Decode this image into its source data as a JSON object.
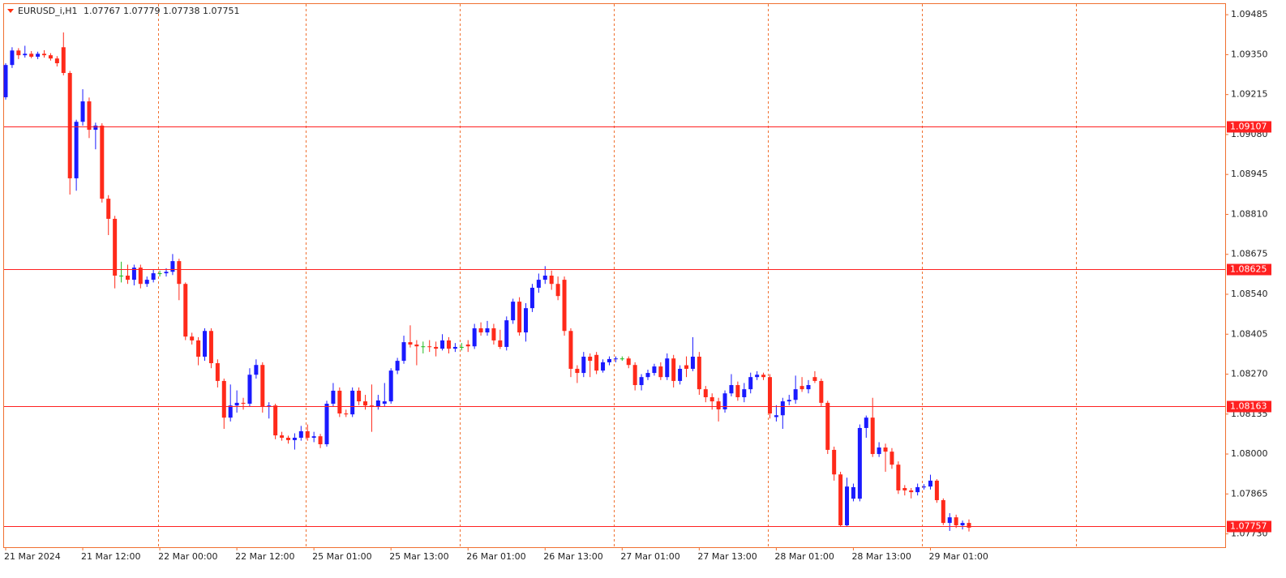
{
  "chart_data": {
    "type": "candlestick",
    "symbol": "EURUSD_i,H1",
    "up_color": "#1a1aff",
    "down_color": "#ff2a1a",
    "doji_color": "#22bb22",
    "level_color": "#ff2020",
    "categories": [
      "21 Mar 2024",
      null,
      null,
      null,
      null,
      null,
      null,
      null,
      null,
      null,
      null,
      null,
      "21 Mar 12:00",
      null,
      null,
      null,
      null,
      null,
      null,
      null,
      null,
      null,
      null,
      null,
      "22 Mar 00:00",
      null,
      null,
      null,
      null,
      null,
      null,
      null,
      null,
      null,
      null,
      null,
      "22 Mar 12:00",
      null,
      null,
      null,
      null,
      null,
      null,
      null,
      null,
      null,
      null,
      null,
      "25 Mar 01:00",
      null,
      null,
      null,
      null,
      null,
      null,
      null,
      null,
      null,
      null,
      null,
      "25 Mar 13:00",
      null,
      null,
      null,
      null,
      null,
      null,
      null,
      null,
      null,
      null,
      null,
      "26 Mar 01:00",
      null,
      null,
      null,
      null,
      null,
      null,
      null,
      null,
      null,
      null,
      null,
      "26 Mar 13:00",
      null,
      null,
      null,
      null,
      null,
      null,
      null,
      null,
      null,
      null,
      null,
      "27 Mar 01:00",
      null,
      null,
      null,
      null,
      null,
      null,
      null,
      null,
      null,
      null,
      null,
      "27 Mar 13:00",
      null,
      null,
      null,
      null,
      null,
      null,
      null,
      null,
      null,
      null,
      null,
      "28 Mar 01:00",
      null,
      null,
      null,
      null,
      null,
      null,
      null,
      null,
      null,
      null,
      null,
      "28 Mar 13:00",
      null,
      null,
      null,
      null,
      null,
      null,
      null,
      null,
      null,
      null,
      null,
      "29 Mar 01:00",
      null,
      null,
      null,
      null,
      null,
      null
    ],
    "ohlc": [
      [
        1.09206,
        1.09321,
        1.09198,
        1.09315
      ],
      [
        1.09315,
        1.09375,
        1.09305,
        1.09364
      ],
      [
        1.09364,
        1.09372,
        1.09335,
        1.09348
      ],
      [
        1.09348,
        1.0938,
        1.0934,
        1.09353
      ],
      [
        1.09353,
        1.09362,
        1.09338,
        1.09343
      ],
      [
        1.09343,
        1.0936,
        1.09335,
        1.09353
      ],
      [
        1.09353,
        1.09365,
        1.0934,
        1.09348
      ],
      [
        1.09348,
        1.09355,
        1.0933,
        1.09337
      ],
      [
        1.09337,
        1.09345,
        1.0931,
        1.09321
      ],
      [
        1.09375,
        1.09425,
        1.0928,
        1.09288
      ],
      [
        1.09288,
        1.09295,
        1.08877,
        1.08932
      ],
      [
        1.08932,
        1.0913,
        1.0889,
        1.09123
      ],
      [
        1.09123,
        1.09233,
        1.0911,
        1.09192
      ],
      [
        1.09192,
        1.09205,
        1.09068,
        1.09096
      ],
      [
        1.09096,
        1.0912,
        1.0903,
        1.0911
      ],
      [
        1.0911,
        1.09118,
        1.0885,
        1.08863
      ],
      [
        1.08863,
        1.08875,
        1.0874,
        1.08795
      ],
      [
        1.08795,
        1.08805,
        1.0856,
        1.08603
      ],
      [
        1.08603,
        1.0865,
        1.0858,
        1.08603
      ],
      [
        1.08603,
        1.0864,
        1.08575,
        1.08589
      ],
      [
        1.08589,
        1.0864,
        1.0857,
        1.0863
      ],
      [
        1.0863,
        1.0864,
        1.0856,
        1.08575
      ],
      [
        1.08575,
        1.086,
        1.08565,
        1.08589
      ],
      [
        1.08589,
        1.08625,
        1.0858,
        1.08611
      ],
      [
        1.08611,
        1.0862,
        1.086,
        1.08611
      ],
      [
        1.08611,
        1.08628,
        1.086,
        1.08616
      ],
      [
        1.08616,
        1.08676,
        1.08605,
        1.08652
      ],
      [
        1.08652,
        1.0866,
        1.0852,
        1.08575
      ],
      [
        1.08575,
        1.0858,
        1.08385,
        1.08397
      ],
      [
        1.08397,
        1.0841,
        1.0837,
        1.08384
      ],
      [
        1.08384,
        1.08395,
        1.083,
        1.08329
      ],
      [
        1.08329,
        1.08425,
        1.08315,
        1.08416
      ],
      [
        1.08416,
        1.08425,
        1.0829,
        1.08307
      ],
      [
        1.08307,
        1.0832,
        1.08225,
        1.08247
      ],
      [
        1.08247,
        1.08255,
        1.08085,
        1.08123
      ],
      [
        1.08123,
        1.08235,
        1.0811,
        1.08164
      ],
      [
        1.08164,
        1.08215,
        1.0814,
        1.08173
      ],
      [
        1.08173,
        1.0819,
        1.0815,
        1.0817
      ],
      [
        1.0817,
        1.0829,
        1.0816,
        1.08268
      ],
      [
        1.08268,
        1.0832,
        1.08255,
        1.08301
      ],
      [
        1.08301,
        1.0831,
        1.0814,
        1.08159
      ],
      [
        1.08159,
        1.08175,
        1.0812,
        1.08164
      ],
      [
        1.08164,
        1.0817,
        1.0805,
        1.08063
      ],
      [
        1.08063,
        1.08075,
        1.08045,
        1.08055
      ],
      [
        1.08055,
        1.08062,
        1.08035,
        1.08047
      ],
      [
        1.08047,
        1.0807,
        1.08015,
        1.08055
      ],
      [
        1.08055,
        1.08095,
        1.08045,
        1.08077
      ],
      [
        1.08077,
        1.081,
        1.08045,
        1.08055
      ],
      [
        1.08055,
        1.08075,
        1.0804,
        1.0806
      ],
      [
        1.0806,
        1.08068,
        1.0802,
        1.08033
      ],
      [
        1.08033,
        1.0818,
        1.08025,
        1.0817
      ],
      [
        1.0817,
        1.0824,
        1.0816,
        1.08214
      ],
      [
        1.08214,
        1.08225,
        1.08125,
        1.08137
      ],
      [
        1.08137,
        1.0815,
        1.08125,
        1.08134
      ],
      [
        1.08134,
        1.08225,
        1.08125,
        1.08214
      ],
      [
        1.08214,
        1.08225,
        1.08165,
        1.08178
      ],
      [
        1.08178,
        1.082,
        1.0815,
        1.08164
      ],
      [
        1.08164,
        1.08235,
        1.08075,
        1.08159
      ],
      [
        1.08159,
        1.082,
        1.0815,
        1.08181
      ],
      [
        1.0817,
        1.0824,
        1.0816,
        1.08178
      ],
      [
        1.08178,
        1.0829,
        1.0817,
        1.08282
      ],
      [
        1.08282,
        1.08325,
        1.0827,
        1.08315
      ],
      [
        1.08315,
        1.084,
        1.08305,
        1.08378
      ],
      [
        1.08378,
        1.08435,
        1.0836,
        1.0837
      ],
      [
        1.0837,
        1.08385,
        1.083,
        1.08364
      ],
      [
        1.08364,
        1.0838,
        1.0834,
        1.08364
      ],
      [
        1.08364,
        1.08385,
        1.08345,
        1.08362
      ],
      [
        1.08362,
        1.0838,
        1.0833,
        1.08356
      ],
      [
        1.08356,
        1.08405,
        1.0835,
        1.08384
      ],
      [
        1.08384,
        1.08395,
        1.0834,
        1.08356
      ],
      [
        1.08356,
        1.08375,
        1.08345,
        1.08362
      ],
      [
        1.08362,
        1.08375,
        1.0835,
        1.08362
      ],
      [
        1.0837,
        1.08385,
        1.08345,
        1.08364
      ],
      [
        1.08364,
        1.0844,
        1.08355,
        1.08425
      ],
      [
        1.08425,
        1.08445,
        1.084,
        1.08411
      ],
      [
        1.08411,
        1.0845,
        1.084,
        1.08425
      ],
      [
        1.08425,
        1.0844,
        1.0837,
        1.08384
      ],
      [
        1.08384,
        1.0842,
        1.08355,
        1.08362
      ],
      [
        1.08362,
        1.08465,
        1.0835,
        1.08452
      ],
      [
        1.08452,
        1.08525,
        1.0844,
        1.08515
      ],
      [
        1.08515,
        1.0853,
        1.084,
        1.08411
      ],
      [
        1.08411,
        1.0851,
        1.0838,
        1.08493
      ],
      [
        1.08493,
        1.08575,
        1.0848,
        1.08562
      ],
      [
        1.08562,
        1.0861,
        1.08545,
        1.08589
      ],
      [
        1.08589,
        1.08635,
        1.08575,
        1.08603
      ],
      [
        1.08603,
        1.0862,
        1.08555,
        1.08575
      ],
      [
        1.08575,
        1.086,
        1.0852,
        1.08534
      ],
      [
        1.08589,
        1.086,
        1.084,
        1.08416
      ],
      [
        1.08416,
        1.08425,
        1.0826,
        1.08288
      ],
      [
        1.08288,
        1.083,
        1.0824,
        1.08274
      ],
      [
        1.08274,
        1.08345,
        1.0826,
        1.08329
      ],
      [
        1.08329,
        1.0834,
        1.0826,
        1.08315
      ],
      [
        1.08335,
        1.08345,
        1.0827,
        1.08282
      ],
      [
        1.08282,
        1.0832,
        1.08275,
        1.0831
      ],
      [
        1.0831,
        1.0833,
        1.083,
        1.08321
      ],
      [
        1.08321,
        1.0833,
        1.0831,
        1.08323
      ],
      [
        1.08323,
        1.0833,
        1.08315,
        1.08323
      ],
      [
        1.08323,
        1.0833,
        1.0829,
        1.08301
      ],
      [
        1.08301,
        1.0831,
        1.08215,
        1.08233
      ],
      [
        1.08233,
        1.0827,
        1.08215,
        1.0826
      ],
      [
        1.0826,
        1.08285,
        1.0825,
        1.08274
      ],
      [
        1.08274,
        1.08305,
        1.08265,
        1.08296
      ],
      [
        1.08296,
        1.0831,
        1.0825,
        1.0826
      ],
      [
        1.0826,
        1.0834,
        1.0825,
        1.08323
      ],
      [
        1.08323,
        1.08335,
        1.08225,
        1.08247
      ],
      [
        1.08247,
        1.083,
        1.08235,
        1.08288
      ],
      [
        1.083,
        1.0833,
        1.0826,
        1.08288
      ],
      [
        1.08288,
        1.08395,
        1.0828,
        1.08329
      ],
      [
        1.08329,
        1.08345,
        1.082,
        1.08219
      ],
      [
        1.08219,
        1.0823,
        1.08175,
        1.08192
      ],
      [
        1.08192,
        1.08205,
        1.0815,
        1.08178
      ],
      [
        1.08178,
        1.0819,
        1.0811,
        1.08151
      ],
      [
        1.08151,
        1.08215,
        1.0814,
        1.08205
      ],
      [
        1.08205,
        1.0827,
        1.08195,
        1.08233
      ],
      [
        1.08233,
        1.08245,
        1.0818,
        1.08192
      ],
      [
        1.08192,
        1.0824,
        1.08175,
        1.08219
      ],
      [
        1.08219,
        1.08275,
        1.08205,
        1.0826
      ],
      [
        1.0826,
        1.0828,
        1.0825,
        1.08268
      ],
      [
        1.08268,
        1.08275,
        1.0825,
        1.0826
      ],
      [
        1.0826,
        1.0827,
        1.0812,
        1.08137
      ],
      [
        1.08125,
        1.08165,
        1.0811,
        1.08131
      ],
      [
        1.08131,
        1.0819,
        1.08085,
        1.08178
      ],
      [
        1.08178,
        1.082,
        1.08165,
        1.08183
      ],
      [
        1.08183,
        1.08265,
        1.0817,
        1.08219
      ],
      [
        1.0823,
        1.0826,
        1.0821,
        1.08219
      ],
      [
        1.08219,
        1.0825,
        1.08205,
        1.08233
      ],
      [
        1.0826,
        1.0828,
        1.0824,
        1.08247
      ],
      [
        1.08247,
        1.08255,
        1.0816,
        1.08173
      ],
      [
        1.08173,
        1.0818,
        1.08,
        1.08014
      ],
      [
        1.08014,
        1.08025,
        1.0791,
        1.07931
      ],
      [
        1.07931,
        1.0794,
        1.07755,
        1.07759
      ],
      [
        1.07759,
        1.0792,
        1.07755,
        1.0789
      ],
      [
        1.07849,
        1.079,
        1.0784,
        1.07888
      ],
      [
        1.07849,
        1.081,
        1.0784,
        1.08088
      ],
      [
        1.08088,
        1.0813,
        1.08055,
        1.08123
      ],
      [
        1.08123,
        1.0819,
        1.0799,
        1.08
      ],
      [
        1.08,
        1.0804,
        1.0799,
        1.08022
      ],
      [
        1.08022,
        1.08035,
        1.0794,
        1.08008
      ],
      [
        1.08008,
        1.0802,
        1.0795,
        1.07964
      ],
      [
        1.07964,
        1.07975,
        1.07865,
        1.07877
      ],
      [
        1.07885,
        1.07895,
        1.0786,
        1.07877
      ],
      [
        1.07877,
        1.07885,
        1.0785,
        1.07871
      ],
      [
        1.07871,
        1.079,
        1.0786,
        1.07888
      ],
      [
        1.07888,
        1.07898,
        1.0788,
        1.0789
      ],
      [
        1.0789,
        1.0793,
        1.0788,
        1.0791
      ],
      [
        1.0791,
        1.07915,
        1.07835,
        1.07844
      ],
      [
        1.07844,
        1.0785,
        1.0776,
        1.07767
      ],
      [
        1.07767,
        1.078,
        1.0774,
        1.07786
      ],
      [
        1.07786,
        1.07795,
        1.0775,
        1.07759
      ],
      [
        1.07759,
        1.07775,
        1.07745,
        1.07767
      ],
      [
        1.07767,
        1.07779,
        1.07738,
        1.07751
      ]
    ],
    "levels": [
      1.09107,
      1.08625,
      1.08163,
      1.07757
    ],
    "ylim": [
      1.07685,
      1.09521
    ],
    "yticks": [
      1.09485,
      {
        "value": 1.0935,
        "label": "1.09350"
      },
      1.09215,
      {
        "value": 1.0908,
        "label": "1.09080"
      },
      1.08945,
      {
        "value": 1.0881,
        "label": "1.08810"
      },
      1.08675,
      {
        "value": 1.0854,
        "label": "1.08540"
      },
      1.08405,
      {
        "value": 1.0827,
        "label": "1.08270"
      },
      1.08135,
      {
        "value": 1.08,
        "label": "1.08000"
      },
      1.07865,
      {
        "value": 1.0773,
        "label": "1.07730"
      }
    ]
  }
}
